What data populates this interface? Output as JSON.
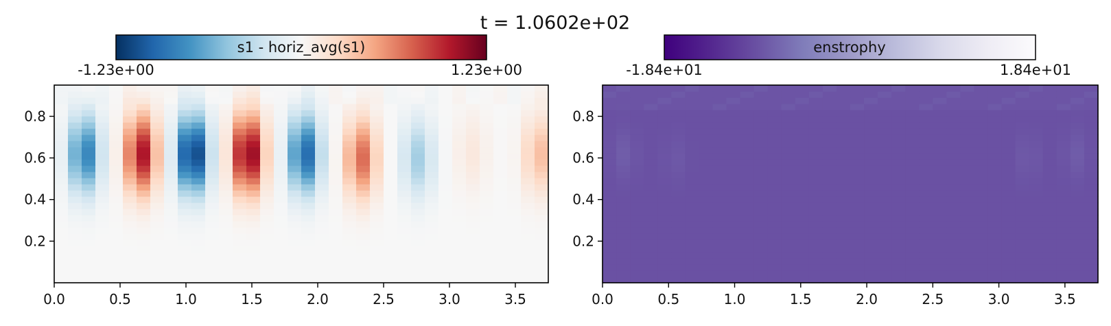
{
  "figure": {
    "title": "t = 1.0602e+02"
  },
  "chart_data": [
    {
      "type": "heatmap",
      "field": "s1 - horiz_avg(s1)",
      "colormap": "RdBu_r",
      "colorbar": {
        "label": "s1 - horiz_avg(s1)",
        "min_label": "-1.23e+00",
        "max_label": "1.23e+00",
        "range": [
          -1.23,
          1.23
        ],
        "stops": [
          "#053061",
          "#2166ac",
          "#4393c3",
          "#92c5de",
          "#d1e5f0",
          "#f7f7f7",
          "#fddbc7",
          "#f4a582",
          "#d6604d",
          "#b2182b",
          "#67001f"
        ]
      },
      "xlim": [
        0,
        3.75
      ],
      "ylim": [
        0,
        0.95
      ],
      "x_ticks": [
        0,
        0.5,
        1,
        1.5,
        2,
        2.5,
        3,
        3.5
      ],
      "x_tick_labels": [
        "0.0",
        "0.5",
        "1.0",
        "1.5",
        "2.0",
        "2.5",
        "3.0",
        "3.5"
      ],
      "y_ticks": [
        0.2,
        0.4,
        0.6,
        0.8
      ],
      "y_tick_labels": [
        "0.2",
        "0.4",
        "0.6",
        "0.8"
      ],
      "grid": {
        "nx": 36,
        "nz": 32
      },
      "features": [
        {
          "x": 0.23,
          "z": 0.62,
          "amplitude": -0.85
        },
        {
          "x": 0.66,
          "z": 0.62,
          "amplitude": 1.02
        },
        {
          "x": 1.05,
          "z": 0.62,
          "amplitude": -1.23
        },
        {
          "x": 1.47,
          "z": 0.62,
          "amplitude": 1.17
        },
        {
          "x": 1.9,
          "z": 0.62,
          "amplitude": -0.98
        },
        {
          "x": 2.33,
          "z": 0.6,
          "amplitude": 0.7
        },
        {
          "x": 2.76,
          "z": 0.6,
          "amplitude": -0.42
        },
        {
          "x": 3.17,
          "z": 0.63,
          "amplitude": 0.13
        },
        {
          "x": 3.68,
          "z": 0.62,
          "amplitude": 0.38
        }
      ]
    },
    {
      "type": "heatmap",
      "field": "enstrophy",
      "colormap": "Purples_r",
      "colorbar": {
        "label": "enstrophy",
        "min_label": "-1.84e+01",
        "max_label": "1.84e+01",
        "range": [
          -18.4,
          18.4
        ],
        "stops": [
          "#3f007d",
          "#54278f",
          "#6a51a3",
          "#807dba",
          "#9e9ac8",
          "#bcbddc",
          "#dadaeb",
          "#efedf5",
          "#fcfbfd"
        ]
      },
      "xlim": [
        0,
        3.75
      ],
      "ylim": [
        0,
        0.95
      ],
      "x_ticks": [
        0,
        0.5,
        1,
        1.5,
        2,
        2.5,
        3,
        3.5
      ],
      "x_tick_labels": [
        "0.0",
        "0.5",
        "1.0",
        "1.5",
        "2.0",
        "2.5",
        "3.0",
        "3.5"
      ],
      "y_ticks": [
        0.2,
        0.4,
        0.6,
        0.8
      ],
      "y_tick_labels": [
        "0.2",
        "0.4",
        "0.6",
        "0.8"
      ],
      "grid": {
        "nx": 36,
        "nz": 32
      },
      "background_value": 0.0,
      "features": [
        {
          "x": 0.17,
          "z": 0.62,
          "amplitude": 1.3
        },
        {
          "x": 0.55,
          "z": 0.6,
          "amplitude": 0.8
        },
        {
          "x": 3.22,
          "z": 0.6,
          "amplitude": 1.0
        },
        {
          "x": 3.58,
          "z": 0.62,
          "amplitude": 1.2
        }
      ]
    }
  ]
}
